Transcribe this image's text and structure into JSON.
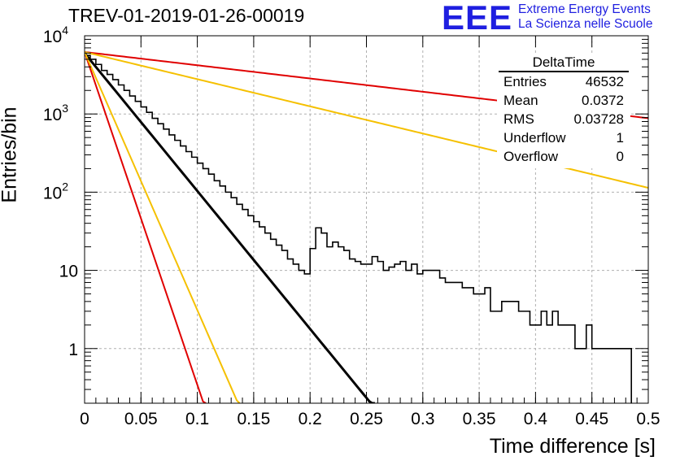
{
  "header": {
    "title": "TREV-01-2019-01-26-00019",
    "logo": "EEE",
    "logo_line1": "Extreme Energy Events",
    "logo_line2": "La Scienza nelle Scuole"
  },
  "stats_box": {
    "name": "DeltaTime",
    "rows": [
      {
        "label": "Entries",
        "value": "46532"
      },
      {
        "label": "Mean",
        "value": "0.0372"
      },
      {
        "label": "RMS",
        "value": "0.03728"
      },
      {
        "label": "Underflow",
        "value": "1"
      },
      {
        "label": "Overflow",
        "value": "0"
      }
    ]
  },
  "chart_data": {
    "type": "line",
    "title": "TREV-01-2019-01-26-00019",
    "xlabel": "Time difference [s]",
    "ylabel": "Entries/bin",
    "xlim": [
      0,
      0.5
    ],
    "ylim": [
      0.2,
      10000
    ],
    "yscale": "log",
    "grid": true,
    "xticks": [
      "0",
      "0.05",
      "0.1",
      "0.15",
      "0.2",
      "0.25",
      "0.3",
      "0.35",
      "0.4",
      "0.45",
      "0.5"
    ],
    "yticks": [
      "1",
      "10",
      "10^2",
      "10^3",
      "10^4"
    ],
    "histogram": {
      "name": "DeltaTime",
      "bin_width": 0.005,
      "color": "#000000",
      "counts": [
        5600,
        5000,
        4300,
        3600,
        3200,
        2750,
        2350,
        2000,
        1700,
        1450,
        1230,
        1050,
        880,
        750,
        640,
        540,
        460,
        390,
        330,
        280,
        235,
        200,
        170,
        140,
        120,
        100,
        85,
        70,
        60,
        50,
        42,
        36,
        30,
        25,
        21,
        18,
        14,
        12,
        10,
        9,
        19,
        35,
        30,
        20,
        23,
        20,
        18,
        14,
        13,
        12,
        12,
        15,
        13,
        10,
        11,
        12,
        13,
        10,
        12,
        9,
        10,
        10,
        10,
        8,
        7,
        7,
        7,
        6,
        6,
        5,
        5,
        6,
        3,
        3,
        4,
        4,
        4,
        3,
        3,
        2,
        2,
        3,
        2,
        3,
        2,
        2,
        2,
        1,
        1,
        2,
        1,
        1,
        1,
        1,
        1,
        1,
        1,
        0,
        0,
        0
      ],
      "counts_note_bins_from": 0
    },
    "fit_lines": [
      {
        "name": "fit",
        "color": "#000000",
        "y0": 6000,
        "decay": 40.6
      },
      {
        "name": "red-slow",
        "color": "#e00000",
        "y0": 6200,
        "decay": 3.9
      },
      {
        "name": "yellow-slow",
        "color": "#f5c000",
        "y0": 6200,
        "decay": 8.0
      },
      {
        "name": "red-fast",
        "color": "#e00000",
        "y0": 6200,
        "decay": 98.0
      },
      {
        "name": "yellow-fast",
        "color": "#f5c000",
        "y0": 6200,
        "decay": 76.0
      }
    ]
  }
}
